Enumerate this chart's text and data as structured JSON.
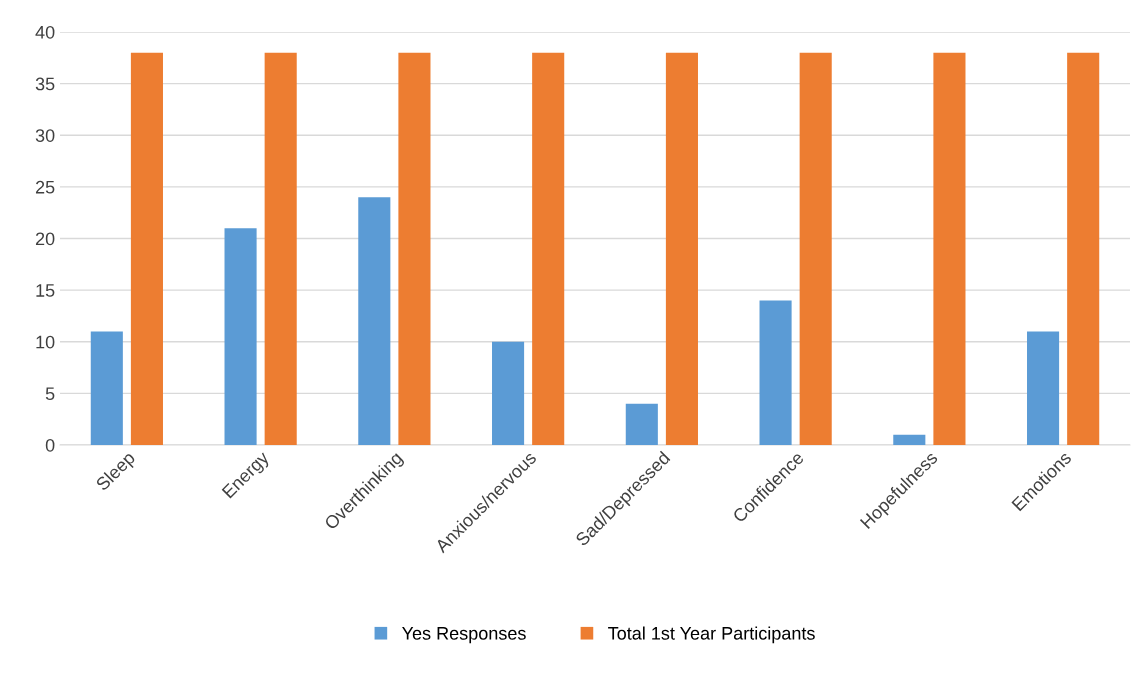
{
  "chart_data": {
    "type": "bar",
    "categories": [
      "Sleep",
      "Energy",
      "Overthinking",
      "Anxious/nervous",
      "Sad/Depressed",
      "Confidence",
      "Hopefulness",
      "Emotions"
    ],
    "series": [
      {
        "name": "Yes Responses",
        "color": "#5b9bd5",
        "values": [
          11,
          21,
          24,
          10,
          4,
          14,
          1,
          11
        ]
      },
      {
        "name": "Total 1st Year Participants",
        "color": "#ed7d31",
        "values": [
          38,
          38,
          38,
          38,
          38,
          38,
          38,
          38
        ]
      }
    ],
    "ylim": [
      0,
      40
    ],
    "yticks": [
      0,
      5,
      10,
      15,
      20,
      25,
      30,
      35,
      40
    ],
    "grid": "y",
    "legend": "bottom"
  }
}
